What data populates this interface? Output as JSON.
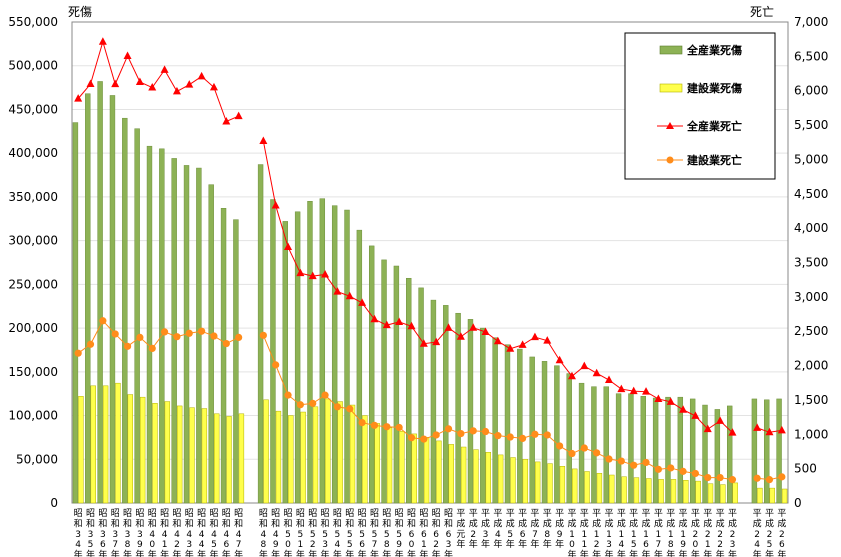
{
  "chart_data": {
    "type": "bar",
    "yaxis_left": {
      "title": "死傷",
      "ylim": [
        0,
        550000
      ],
      "step": 50000
    },
    "yaxis_right": {
      "title": "死亡",
      "ylim": [
        0,
        7000
      ],
      "step": 500
    },
    "categories": [
      "昭和34年",
      "昭和35年",
      "昭和36年",
      "昭和37年",
      "昭和38年",
      "昭和39年",
      "昭和40年",
      "昭和41年",
      "昭和42年",
      "昭和43年",
      "昭和44年",
      "昭和45年",
      "昭和46年",
      "昭和47年",
      "",
      "昭和48年",
      "昭和49年",
      "昭和50年",
      "昭和51年",
      "昭和52年",
      "昭和53年",
      "昭和54年",
      "昭和55年",
      "昭和56年",
      "昭和57年",
      "昭和58年",
      "昭和59年",
      "昭和60年",
      "昭和61年",
      "昭和62年",
      "昭和63年",
      "平成元年",
      "平成2年",
      "平成3年",
      "平成4年",
      "平成5年",
      "平成6年",
      "平成7年",
      "平成8年",
      "平成9年",
      "平成10年",
      "平成11年",
      "平成12年",
      "平成13年",
      "平成14年",
      "平成15年",
      "平成16年",
      "平成17年",
      "平成18年",
      "平成19年",
      "平成20年",
      "平成21年",
      "平成22年",
      "平成23年",
      "",
      "平成24年",
      "平成25年",
      "平成26年"
    ],
    "series": [
      {
        "name": "全産業死傷",
        "kind": "bar",
        "axis": "left",
        "color": "#8DB255",
        "values": [
          435000,
          468000,
          482000,
          466000,
          440000,
          428000,
          408000,
          405000,
          394000,
          386000,
          383000,
          364000,
          337000,
          324000,
          null,
          387000,
          347000,
          322000,
          333000,
          345000,
          348000,
          340000,
          335000,
          312000,
          294000,
          278000,
          271000,
          257000,
          246000,
          232000,
          226000,
          217000,
          210000,
          200000,
          189000,
          181000,
          176000,
          167000,
          162000,
          157000,
          148000,
          137000,
          133000,
          133000,
          125000,
          125000,
          122000,
          120000,
          121000,
          121000,
          119000,
          112000,
          107000,
          111000,
          null,
          119000,
          118000,
          119000
        ]
      },
      {
        "name": "建設業死傷",
        "kind": "bar",
        "axis": "left",
        "color": "#FFFF4C",
        "values": [
          122000,
          134000,
          134000,
          137000,
          124000,
          121000,
          114000,
          116000,
          111000,
          109000,
          108000,
          102000,
          99000,
          102000,
          null,
          118000,
          105000,
          100000,
          104000,
          110000,
          119000,
          116000,
          112000,
          100000,
          91000,
          86000,
          82000,
          79000,
          75000,
          71000,
          67000,
          64000,
          61000,
          58000,
          55000,
          52000,
          50000,
          47000,
          45000,
          42000,
          39000,
          36000,
          34000,
          32000,
          30000,
          29000,
          28000,
          27000,
          27000,
          26000,
          25000,
          22000,
          21000,
          23000,
          null,
          17000,
          17000,
          16000
        ]
      },
      {
        "name": "全産業死亡",
        "kind": "line",
        "axis": "right",
        "color": "#FF0000",
        "marker": "triangle",
        "values": [
          5885,
          6097,
          6712,
          6096,
          6506,
          6127,
          6046,
          6303,
          5990,
          6088,
          6208,
          6048,
          5552,
          5631,
          null,
          5269,
          4330,
          3725,
          3345,
          3302,
          3326,
          3077,
          3009,
          2912,
          2674,
          2588,
          2635,
          2572,
          2318,
          2342,
          2549,
          2419,
          2550,
          2489,
          2354,
          2245,
          2301,
          2414,
          2363,
          2078,
          1844,
          1992,
          1889,
          1790,
          1658,
          1628,
          1620,
          1514,
          1472,
          1357,
          1268,
          1075,
          1195,
          1024,
          null,
          1093,
          1030,
          1057
        ]
      },
      {
        "name": "建設業死亡",
        "kind": "line",
        "axis": "right",
        "color": "#FF8C1A",
        "marker": "circle",
        "values": [
          2180,
          2310,
          2652,
          2460,
          2280,
          2410,
          2250,
          2490,
          2420,
          2470,
          2500,
          2430,
          2320,
          2410,
          null,
          2440,
          2010,
          1570,
          1430,
          1450,
          1570,
          1400,
          1370,
          1170,
          1130,
          1110,
          1100,
          950,
          930,
          990,
          1080,
          1010,
          1050,
          1040,
          980,
          960,
          940,
          1000,
          990,
          830,
          720,
          800,
          730,
          640,
          610,
          550,
          590,
          490,
          510,
          460,
          430,
          370,
          370,
          340,
          null,
          360,
          340,
          380
        ]
      }
    ]
  }
}
